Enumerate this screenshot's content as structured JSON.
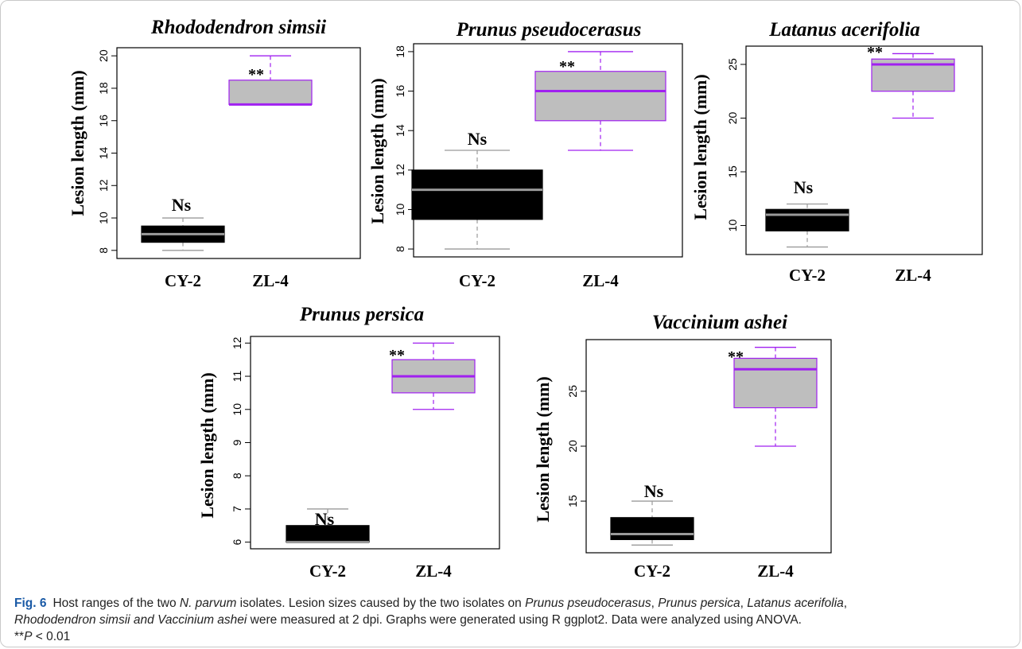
{
  "colors": {
    "cy2_fill": "#000000",
    "cy2_line": "#9a9a9a",
    "zl4_fill": "#bebebe",
    "zl4_line": "#a020f0",
    "frame": "#c9c9c9",
    "fig_label": "#1a5aa6"
  },
  "chart_data": [
    {
      "type": "boxplot",
      "title": "Rhododendron simsii",
      "ylabel": "Lesion length (mm)",
      "categories": [
        "CY-2",
        "ZL-4"
      ],
      "yticks": [
        8,
        10,
        12,
        14,
        16,
        18,
        20
      ],
      "ylim": [
        7.5,
        20.5
      ],
      "boxes": [
        {
          "category": "CY-2",
          "min": 8,
          "q1": 8.5,
          "median": 9,
          "q3": 9.5,
          "max": 10
        },
        {
          "category": "ZL-4",
          "min": 17,
          "q1": 17,
          "median": 17,
          "q3": 18.5,
          "max": 20
        }
      ],
      "annotations": [
        "Ns",
        "**"
      ]
    },
    {
      "type": "boxplot",
      "title": "Prunus pseudocerasus",
      "ylabel": "Lesion length (mm)",
      "categories": [
        "CY-2",
        "ZL-4"
      ],
      "yticks": [
        8,
        10,
        12,
        14,
        16,
        18
      ],
      "ylim": [
        7.6,
        18.4
      ],
      "boxes": [
        {
          "category": "CY-2",
          "min": 8,
          "q1": 9.5,
          "median": 11,
          "q3": 12,
          "max": 13
        },
        {
          "category": "ZL-4",
          "min": 13,
          "q1": 14.5,
          "median": 16,
          "q3": 17,
          "max": 18
        }
      ],
      "annotations": [
        "Ns",
        "**"
      ]
    },
    {
      "type": "boxplot",
      "title": "Latanus acerifolia",
      "ylabel": "Lesion length (mm)",
      "categories": [
        "CY-2",
        "ZL-4"
      ],
      "yticks": [
        10,
        15,
        20,
        25
      ],
      "ylim": [
        7.3,
        26.7
      ],
      "boxes": [
        {
          "category": "CY-2",
          "min": 8,
          "q1": 9.5,
          "median": 11,
          "q3": 11.5,
          "max": 12
        },
        {
          "category": "ZL-4",
          "min": 20,
          "q1": 22.5,
          "median": 25,
          "q3": 25.5,
          "max": 26
        }
      ],
      "annotations": [
        "Ns",
        "**"
      ]
    },
    {
      "type": "boxplot",
      "title": "Prunus persica",
      "ylabel": "Lesion length (mm)",
      "categories": [
        "CY-2",
        "ZL-4"
      ],
      "yticks": [
        6,
        7,
        8,
        9,
        10,
        11,
        12
      ],
      "ylim": [
        5.8,
        12.2
      ],
      "boxes": [
        {
          "category": "CY-2",
          "min": 6,
          "q1": 6,
          "median": 6,
          "q3": 6.5,
          "max": 7
        },
        {
          "category": "ZL-4",
          "min": 10,
          "q1": 10.5,
          "median": 11,
          "q3": 11.5,
          "max": 12
        }
      ],
      "annotations": [
        "Ns",
        "**"
      ]
    },
    {
      "type": "boxplot",
      "title": "Vaccinium ashei",
      "ylabel": "Lesion length (mm)",
      "categories": [
        "CY-2",
        "ZL-4"
      ],
      "yticks": [
        15,
        20,
        25
      ],
      "ylim": [
        10.3,
        29.7
      ],
      "boxes": [
        {
          "category": "CY-2",
          "min": 11,
          "q1": 11.5,
          "median": 12,
          "q3": 13.5,
          "max": 15
        },
        {
          "category": "ZL-4",
          "min": 20,
          "q1": 23.5,
          "median": 27,
          "q3": 28,
          "max": 29
        }
      ],
      "annotations": [
        "Ns",
        "**"
      ]
    }
  ],
  "caption": {
    "fig_label": "Fig. 6",
    "s1": "Host ranges of the two ",
    "s2": "N. parvum",
    "s3": " isolates. Lesion sizes caused by the two isolates on ",
    "s4": "Prunus pseudocerasus",
    "s5": ", ",
    "s6": "Prunus persica",
    "s7": ", ",
    "s8": "Latanus acerifolia",
    "s9": ", ",
    "s10": "Rhododendron simsii and Vaccinium ashei",
    "s11": " were measured at 2 dpi. Graphs were generated using R ggplot2. Data were analyzed using ANOVA.",
    "s12": "**",
    "s13": "P",
    "s14": " < 0.01"
  }
}
